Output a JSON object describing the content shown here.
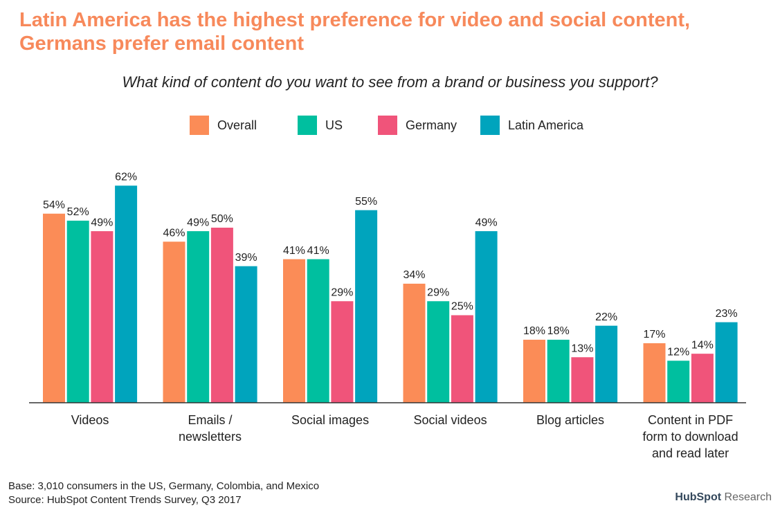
{
  "chart_data": {
    "type": "bar",
    "title": "Latin America has the highest preference for video and social content, Germans prefer email content",
    "subtitle": "What kind of content do you want to see from a brand or business you support?",
    "categories": [
      "Videos",
      "Emails / newsletters",
      "Social images",
      "Social videos",
      "Blog articles",
      "Content in PDF form to download and read later"
    ],
    "series": [
      {
        "name": "Overall",
        "color": "#fb8c57",
        "values": [
          54,
          46,
          41,
          34,
          18,
          17
        ],
        "value_labels": [
          "54%",
          "46%",
          "41%",
          "34%",
          "18%",
          "17%"
        ]
      },
      {
        "name": "US",
        "color": "#00bf9f",
        "values": [
          52,
          49,
          41,
          29,
          18,
          12
        ],
        "value_labels": [
          "52%",
          "49%",
          "41%",
          "29%",
          "18%",
          "12%"
        ]
      },
      {
        "name": "Germany",
        "color": "#f0547a",
        "values": [
          49,
          50,
          29,
          25,
          13,
          14
        ],
        "value_labels": [
          "49%",
          "50%",
          "29%",
          "25%",
          "13%",
          "14%"
        ]
      },
      {
        "name": "Latin America",
        "color": "#00a4bd",
        "values": [
          62,
          39,
          55,
          49,
          22,
          23
        ],
        "value_labels": [
          "62%",
          "39%",
          "55%",
          "49%",
          "22%",
          "23%"
        ]
      }
    ],
    "notes": [
      "Base: 3,010 consumers in the US, Germany, Colombia, and Mexico",
      "Source: HubSpot Content Trends Survey, Q3 2017"
    ],
    "logo": {
      "brand": "HubSpot",
      "suffix": "Research"
    }
  }
}
